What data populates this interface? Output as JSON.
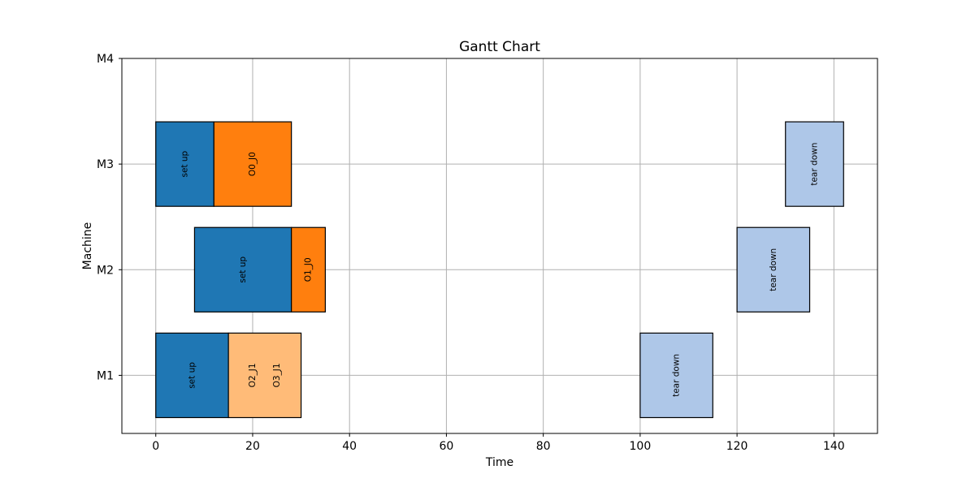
{
  "chart_data": {
    "type": "gantt",
    "title": "Gantt Chart",
    "xlabel": "Time",
    "ylabel": "Machine",
    "xlim": [
      -7,
      149
    ],
    "ylim": [
      0.45,
      4
    ],
    "xticks": [
      0,
      20,
      40,
      60,
      80,
      100,
      120,
      140
    ],
    "yticks": [
      {
        "value": 1,
        "label": "M1"
      },
      {
        "value": 2,
        "label": "M2"
      },
      {
        "value": 3,
        "label": "M3"
      },
      {
        "value": 4,
        "label": "M4"
      }
    ],
    "grid": true,
    "colors": {
      "setup": "#1f77b4",
      "job0": "#ff7f0e",
      "job1": "#ffbb78",
      "teardown": "#aec7e8"
    },
    "tasks": [
      {
        "machine": 1,
        "start": 0,
        "end": 15,
        "label": "set up",
        "color_key": "setup"
      },
      {
        "machine": 1,
        "start": 15,
        "end": 30,
        "label": "O2_J1",
        "color_key": "job1"
      },
      {
        "machine": 1,
        "start": 15,
        "end": 30,
        "label": "O3_J1",
        "color_key": "job1"
      },
      {
        "machine": 1,
        "start": 100,
        "end": 115,
        "label": "tear down",
        "color_key": "teardown"
      },
      {
        "machine": 2,
        "start": 8,
        "end": 28,
        "label": "set up",
        "color_key": "setup"
      },
      {
        "machine": 2,
        "start": 28,
        "end": 35,
        "label": "O1_J0",
        "color_key": "job0"
      },
      {
        "machine": 2,
        "start": 120,
        "end": 135,
        "label": "tear down",
        "color_key": "teardown"
      },
      {
        "machine": 3,
        "start": 0,
        "end": 12,
        "label": "set up",
        "color_key": "setup"
      },
      {
        "machine": 3,
        "start": 12,
        "end": 28,
        "label": "O0_J0",
        "color_key": "job0"
      },
      {
        "machine": 3,
        "start": 130,
        "end": 142,
        "label": "tear down",
        "color_key": "teardown"
      }
    ]
  }
}
